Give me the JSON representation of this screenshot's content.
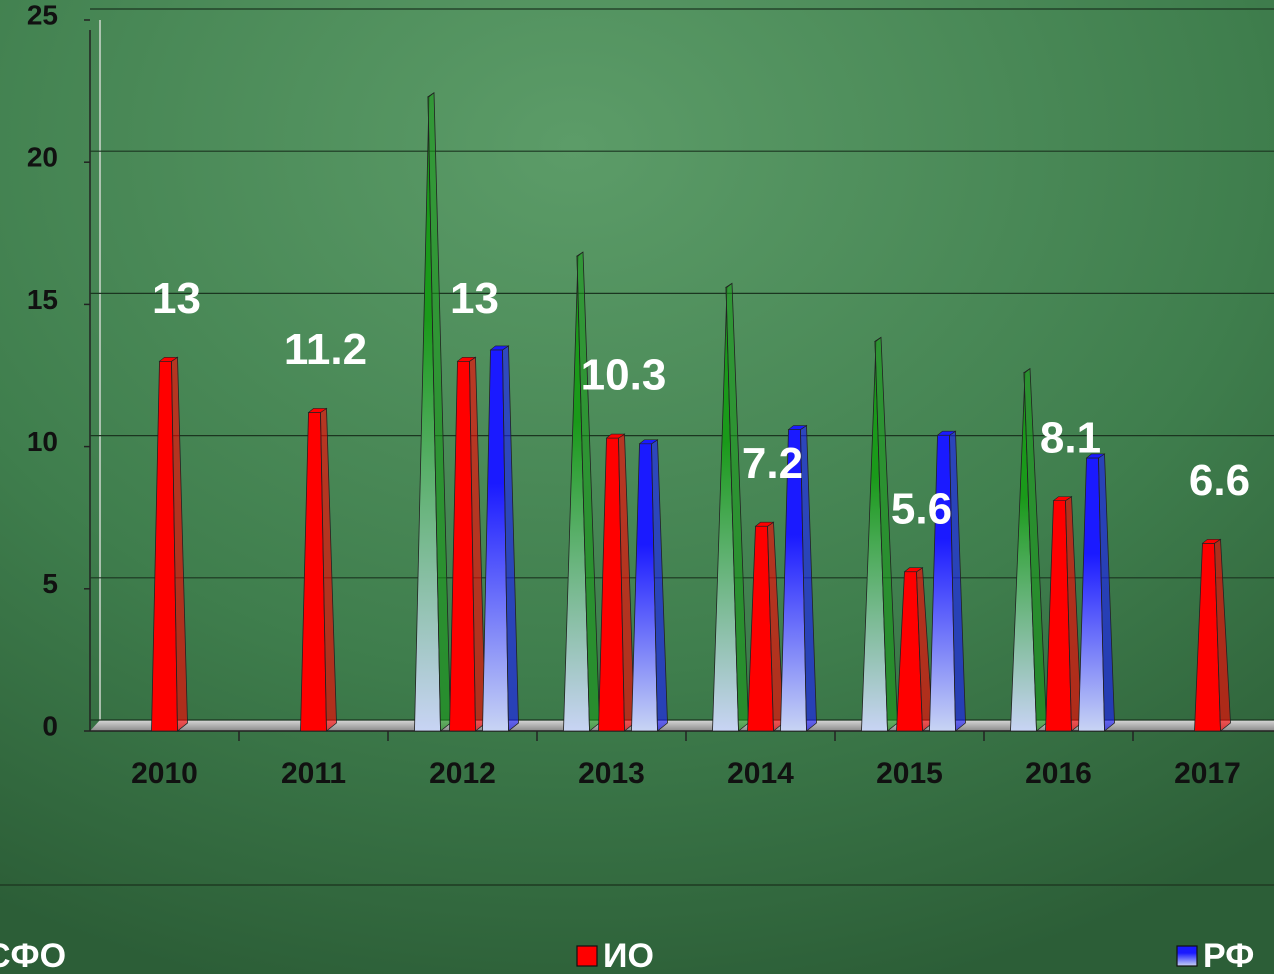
{
  "chart_data": {
    "type": "bar",
    "categories": [
      "2010",
      "2011",
      "2012",
      "2013",
      "2014",
      "2015",
      "2016",
      "2017"
    ],
    "series": [
      {
        "name": "СФО",
        "color": "#1a9a1a",
        "values": [
          null,
          null,
          22.3,
          16.7,
          15.6,
          13.7,
          12.6,
          null
        ]
      },
      {
        "name": "ИО",
        "color": "#ff0000",
        "values": [
          13,
          11.2,
          13,
          10.3,
          7.2,
          5.6,
          8.1,
          6.6
        ]
      },
      {
        "name": "РФ",
        "color": "#1a1aff",
        "values": [
          null,
          null,
          13.4,
          10.1,
          10.6,
          10.4,
          9.6,
          null
        ]
      }
    ],
    "data_labels_series": "ИО",
    "ylim": [
      0,
      25
    ],
    "yticks": [
      0,
      5,
      10,
      15,
      20,
      25
    ],
    "grid": true,
    "legend": "bottom"
  }
}
